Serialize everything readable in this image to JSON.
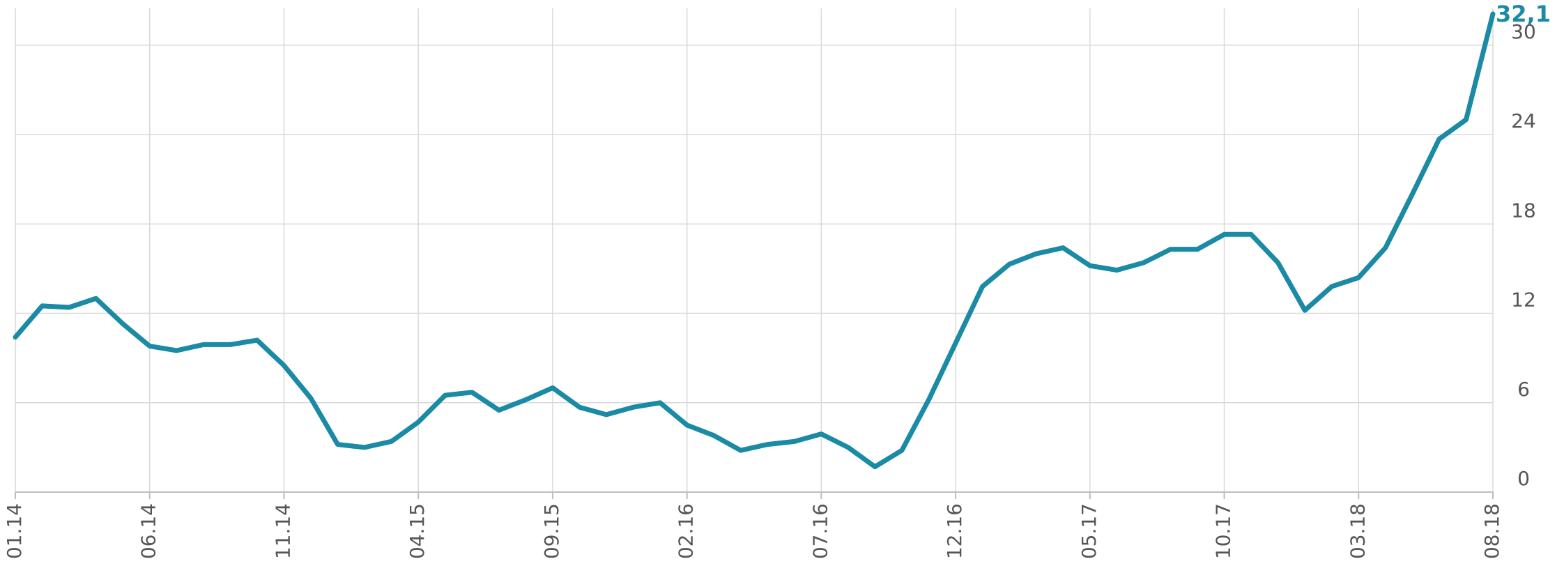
{
  "chart_data": {
    "type": "line",
    "title": "",
    "xlabel": "",
    "ylabel": "",
    "x_tick_labels": [
      "01.14",
      "06.14",
      "11.14",
      "04.15",
      "09.15",
      "02.16",
      "07.16",
      "12.16",
      "05.17",
      "10.17",
      "03.18",
      "08.18"
    ],
    "y_ticks": [
      0,
      6,
      12,
      18,
      24,
      30
    ],
    "y_tick_labels": [
      "0",
      "6",
      "12",
      "18",
      "24",
      "30"
    ],
    "ylim": [
      0,
      32.1
    ],
    "xlim": [
      "01.14",
      "08.18"
    ],
    "grid": true,
    "y_axis_position": "right",
    "series": [
      {
        "color": "#1a8aa5",
        "end_label": "32,1",
        "x": [
          "01.14",
          "02.14",
          "03.14",
          "04.14",
          "05.14",
          "06.14",
          "07.14",
          "08.14",
          "09.14",
          "10.14",
          "11.14",
          "12.14",
          "01.15",
          "02.15",
          "03.15",
          "04.15",
          "05.15",
          "06.15",
          "07.15",
          "08.15",
          "09.15",
          "10.15",
          "11.15",
          "12.15",
          "01.16",
          "02.16",
          "03.16",
          "04.16",
          "05.16",
          "06.16",
          "07.16",
          "08.16",
          "09.16",
          "10.16",
          "11.16",
          "12.16",
          "01.17",
          "02.17",
          "03.17",
          "04.17",
          "05.17",
          "06.17",
          "07.17",
          "08.17",
          "09.17",
          "10.17",
          "11.17",
          "12.17",
          "01.18",
          "02.18",
          "03.18",
          "04.18",
          "05.18",
          "06.18",
          "07.18",
          "08.18"
        ],
        "values": [
          10.4,
          12.5,
          12.4,
          13.0,
          11.3,
          9.8,
          9.5,
          9.9,
          9.9,
          10.2,
          8.5,
          6.3,
          3.2,
          3.0,
          3.4,
          4.7,
          6.5,
          6.7,
          5.5,
          6.2,
          7.0,
          5.7,
          5.2,
          5.7,
          6.0,
          4.5,
          3.8,
          2.8,
          3.2,
          3.4,
          3.9,
          3.0,
          1.7,
          2.8,
          6.2,
          10.0,
          13.8,
          15.3,
          16.0,
          16.4,
          15.2,
          14.9,
          15.4,
          16.3,
          16.3,
          17.3,
          17.3,
          15.4,
          12.2,
          13.8,
          14.4,
          16.4,
          20.0,
          23.7,
          25.0,
          32.1
        ]
      }
    ]
  }
}
